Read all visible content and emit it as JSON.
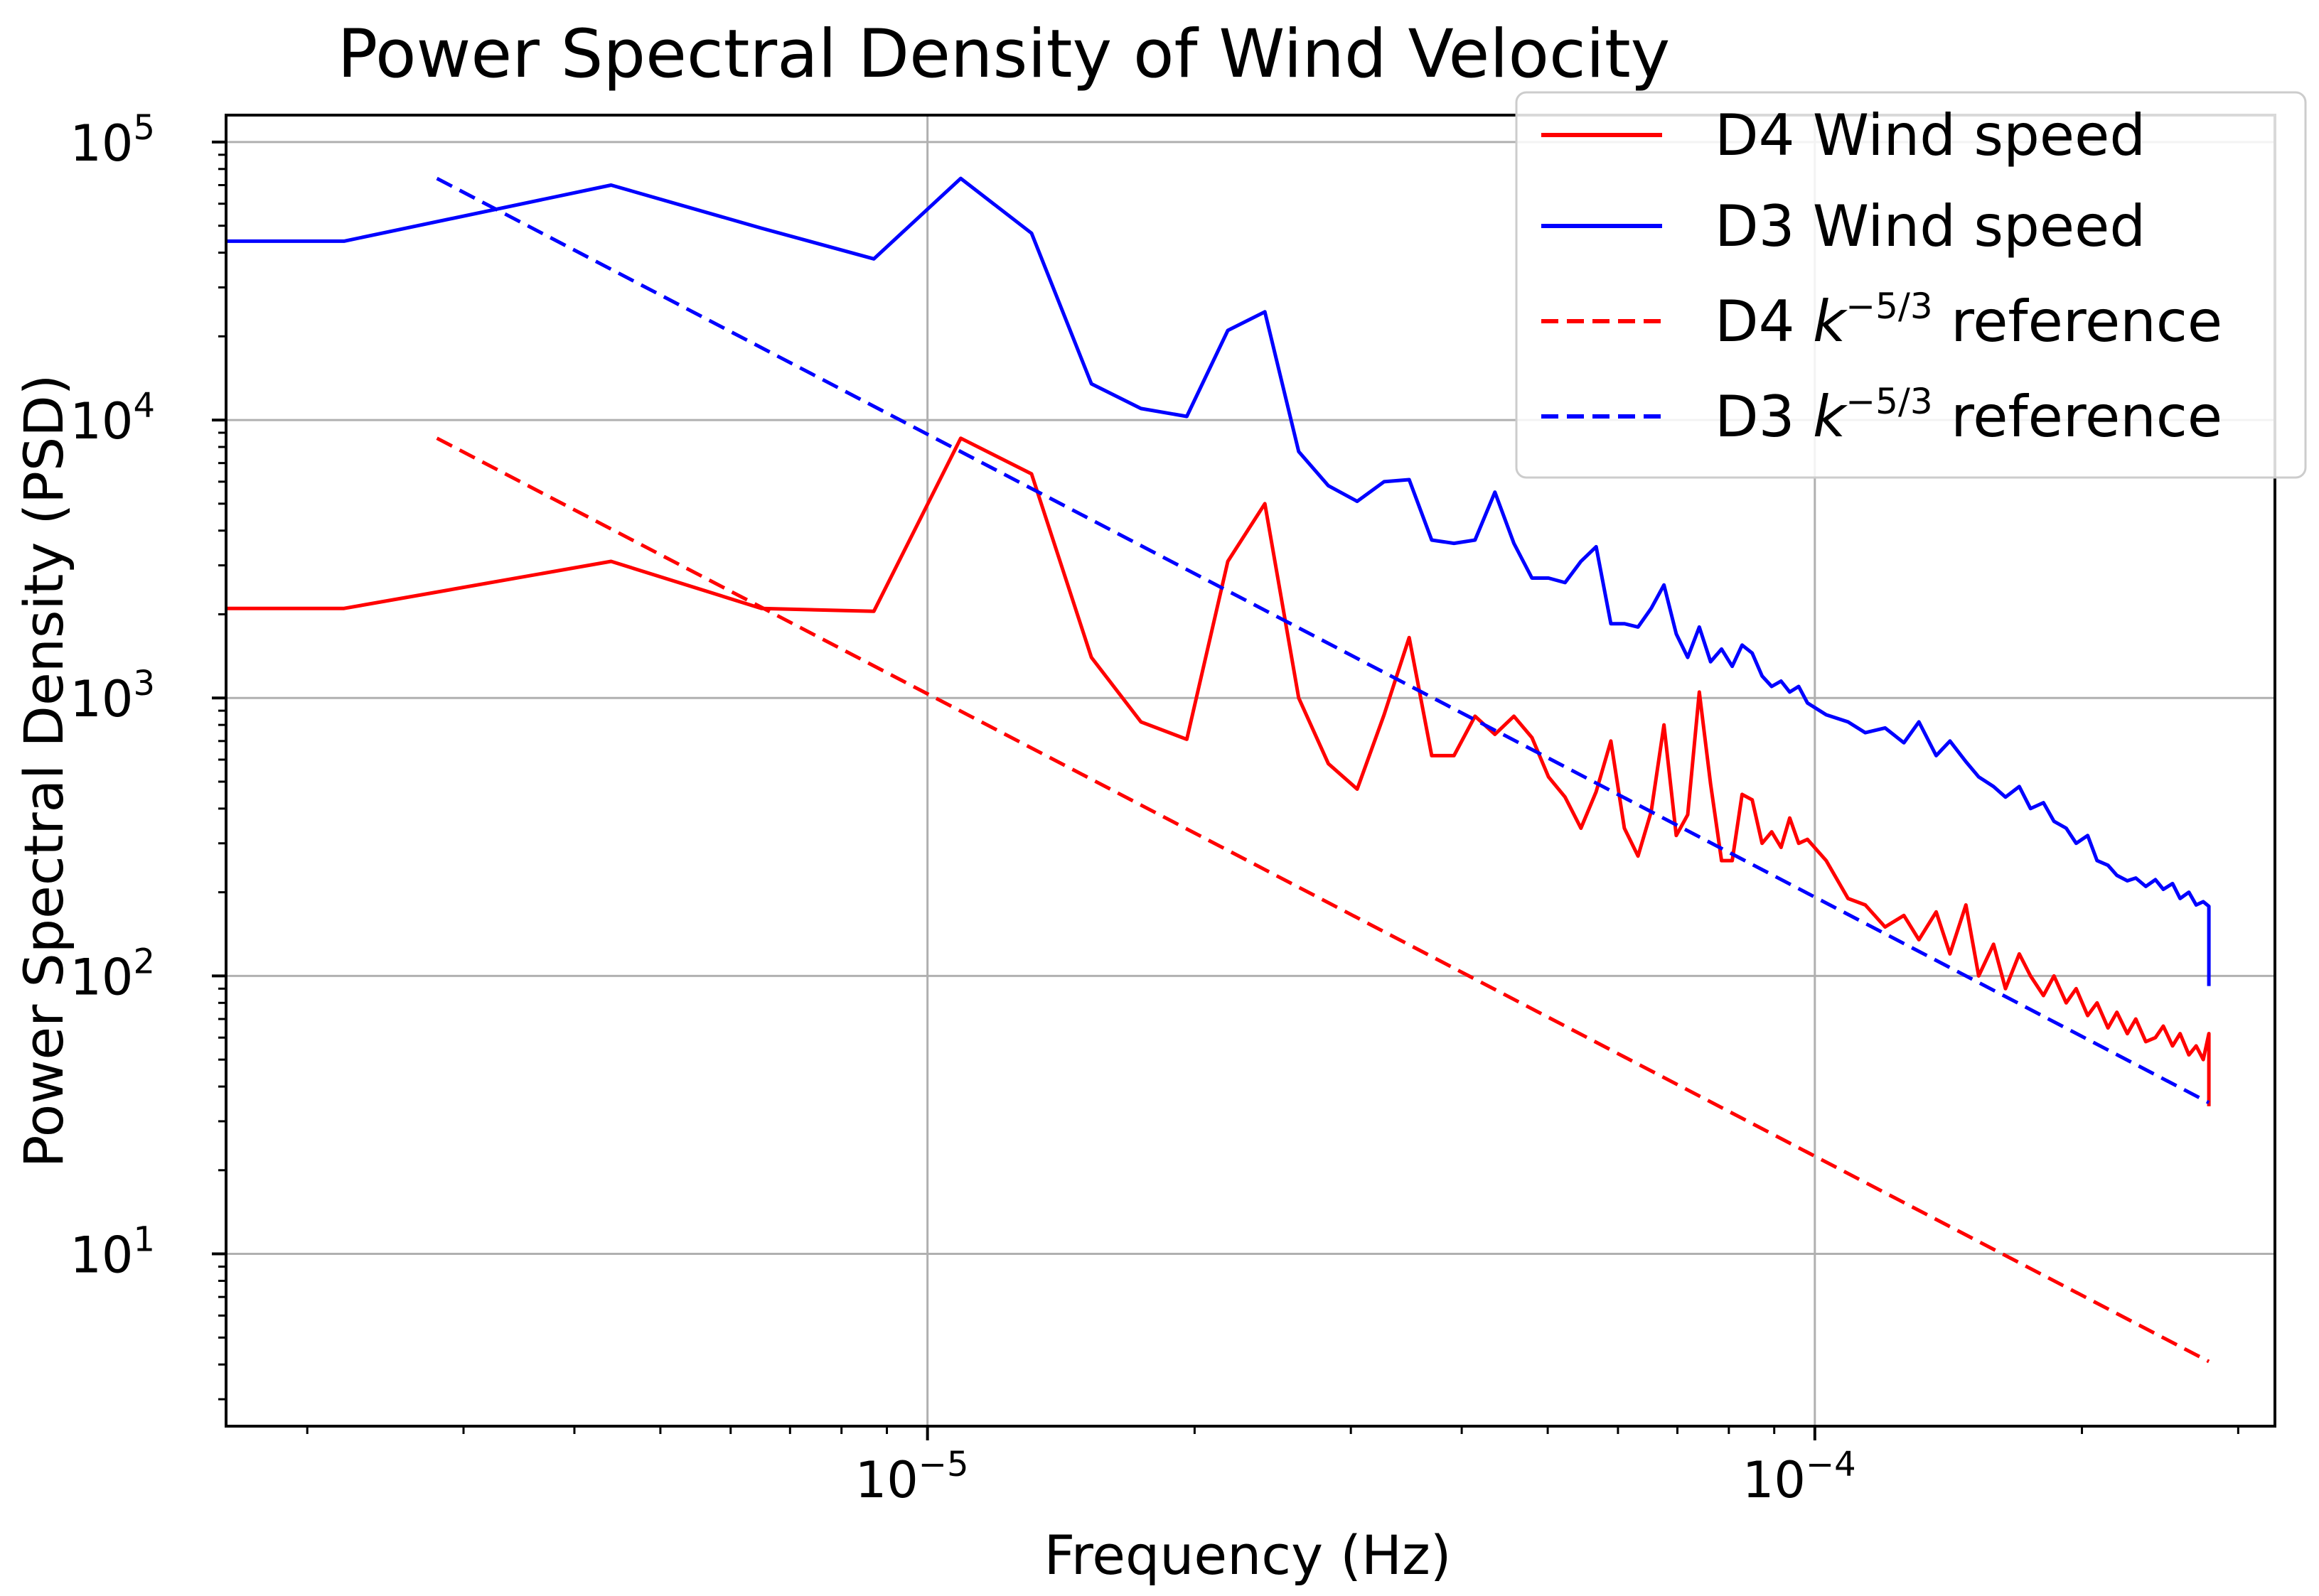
{
  "chart_data": {
    "type": "line",
    "title": "Power Spectral Density of Wind Velocity",
    "xlabel": "Frequency (Hz)",
    "ylabel": "Power Spectral Density (PSD)",
    "xscale": "log",
    "yscale": "log",
    "xlim": [
      1.62e-06,
      0.00033
    ],
    "ylim": [
      2.4,
      125000
    ],
    "grid": true,
    "legend_position": "top-right",
    "x_ticks": [
      {
        "base": "10",
        "exp": "−5",
        "value": 1e-05
      },
      {
        "base": "10",
        "exp": "−4",
        "value": 0.0001
      }
    ],
    "y_ticks": [
      {
        "base": "10",
        "exp": "1",
        "value": 10
      },
      {
        "base": "10",
        "exp": "2",
        "value": 100
      },
      {
        "base": "10",
        "exp": "3",
        "value": 1000
      },
      {
        "base": "10",
        "exp": "4",
        "value": 10000
      },
      {
        "base": "10",
        "exp": "5",
        "value": 100000
      }
    ],
    "series": [
      {
        "name": "D4 Wind speed",
        "legend_label": "D4 Wind speed",
        "color": "#ff0000",
        "style": "solid",
        "x": [
          1.62e-06,
          2.2e-06,
          4.4e-06,
          6.5e-06,
          8.7e-06,
          1.09e-05,
          1.31e-05,
          1.53e-05,
          1.74e-05,
          1.96e-05,
          2.18e-05,
          2.4e-05,
          2.62e-05,
          2.83e-05,
          3.05e-05,
          3.27e-05,
          3.49e-05,
          3.7e-05,
          3.92e-05,
          4.14e-05,
          4.36e-05,
          4.58e-05,
          4.8e-05,
          5.01e-05,
          5.23e-05,
          5.45e-05,
          5.67e-05,
          5.89e-05,
          6.1e-05,
          6.32e-05,
          6.54e-05,
          6.76e-05,
          6.98e-05,
          7.19e-05,
          7.41e-05,
          7.63e-05,
          7.85e-05,
          8.07e-05,
          8.28e-05,
          8.5e-05,
          8.72e-05,
          8.94e-05,
          9.16e-05,
          9.37e-05,
          9.59e-05,
          9.81e-05,
          0.000103,
          0.000109,
          0.000114,
          0.00012,
          0.000126,
          0.000131,
          0.000137,
          0.000142,
          0.000148,
          0.000153,
          0.000159,
          0.000164,
          0.00017,
          0.000175,
          0.000181,
          0.000186,
          0.000192,
          0.000197,
          0.000203,
          0.000208,
          0.000214,
          0.000219,
          0.000225,
          0.00023,
          0.000236,
          0.000242,
          0.000247,
          0.000253,
          0.000258,
          0.000264,
          0.000269,
          0.000274,
          0.000278,
          0.000278
        ],
        "y": [
          2100,
          2100,
          3100,
          2100,
          2050,
          8600,
          6400,
          1400,
          820,
          710,
          3100,
          5000,
          1000,
          580,
          470,
          870,
          1650,
          620,
          620,
          860,
          740,
          860,
          720,
          520,
          440,
          340,
          460,
          700,
          340,
          270,
          390,
          800,
          320,
          380,
          1050,
          490,
          260,
          260,
          450,
          430,
          300,
          330,
          290,
          370,
          300,
          310,
          260,
          190,
          180,
          150,
          165,
          135,
          170,
          120,
          180,
          100,
          130,
          90,
          120,
          100,
          85,
          100,
          80,
          90,
          72,
          80,
          65,
          74,
          62,
          70,
          58,
          60,
          66,
          56,
          62,
          52,
          56,
          50,
          62,
          34
        ],
        "show_in_legend": true
      },
      {
        "name": "D3 Wind speed",
        "legend_label": "D3 Wind speed",
        "color": "#0000ff",
        "style": "solid",
        "x": [
          1.62e-06,
          2.2e-06,
          4.4e-06,
          6.5e-06,
          8.7e-06,
          1.09e-05,
          1.31e-05,
          1.53e-05,
          1.74e-05,
          1.96e-05,
          2.18e-05,
          2.4e-05,
          2.62e-05,
          2.83e-05,
          3.05e-05,
          3.27e-05,
          3.49e-05,
          3.7e-05,
          3.92e-05,
          4.14e-05,
          4.36e-05,
          4.58e-05,
          4.8e-05,
          5.01e-05,
          5.23e-05,
          5.45e-05,
          5.67e-05,
          5.89e-05,
          6.1e-05,
          6.32e-05,
          6.54e-05,
          6.76e-05,
          6.98e-05,
          7.19e-05,
          7.41e-05,
          7.63e-05,
          7.85e-05,
          8.07e-05,
          8.28e-05,
          8.5e-05,
          8.72e-05,
          8.94e-05,
          9.16e-05,
          9.37e-05,
          9.59e-05,
          9.81e-05,
          0.000103,
          0.000109,
          0.000114,
          0.00012,
          0.000126,
          0.000131,
          0.000137,
          0.000142,
          0.000148,
          0.000153,
          0.000159,
          0.000164,
          0.00017,
          0.000175,
          0.000181,
          0.000186,
          0.000192,
          0.000197,
          0.000203,
          0.000208,
          0.000214,
          0.000219,
          0.000225,
          0.00023,
          0.000236,
          0.000242,
          0.000247,
          0.000253,
          0.000258,
          0.000264,
          0.000269,
          0.000274,
          0.000278,
          0.000278
        ],
        "y": [
          44000,
          44000,
          70000,
          49000,
          38000,
          74000,
          47000,
          13500,
          11000,
          10300,
          21000,
          24500,
          7700,
          5800,
          5100,
          6000,
          6100,
          3700,
          3600,
          3700,
          5500,
          3600,
          2700,
          2700,
          2600,
          3100,
          3500,
          1850,
          1850,
          1800,
          2100,
          2550,
          1700,
          1400,
          1800,
          1350,
          1500,
          1300,
          1550,
          1450,
          1200,
          1100,
          1150,
          1050,
          1100,
          960,
          870,
          820,
          750,
          780,
          690,
          820,
          620,
          700,
          590,
          520,
          480,
          440,
          480,
          400,
          420,
          360,
          340,
          300,
          320,
          260,
          250,
          230,
          220,
          225,
          210,
          222,
          205,
          215,
          190,
          200,
          180,
          185,
          178,
          92
        ],
        "show_in_legend": true
      },
      {
        "name": "D4 k-5/3 reference",
        "legend_prefix": "D4",
        "legend_k": "k",
        "legend_exp": "−5/3",
        "legend_suffix": "reference",
        "color": "#ff0000",
        "style": "dashed",
        "x": [
          2.8e-06,
          0.000278
        ],
        "y": [
          8600,
          4.1
        ],
        "show_in_legend": true
      },
      {
        "name": "D3 k-5/3 reference",
        "legend_prefix": "D3",
        "legend_k": "k",
        "legend_exp": "−5/3",
        "legend_suffix": "reference",
        "color": "#0000ff",
        "style": "dashed",
        "x": [
          2.8e-06,
          0.000278
        ],
        "y": [
          74000,
          35
        ],
        "show_in_legend": true
      }
    ]
  }
}
